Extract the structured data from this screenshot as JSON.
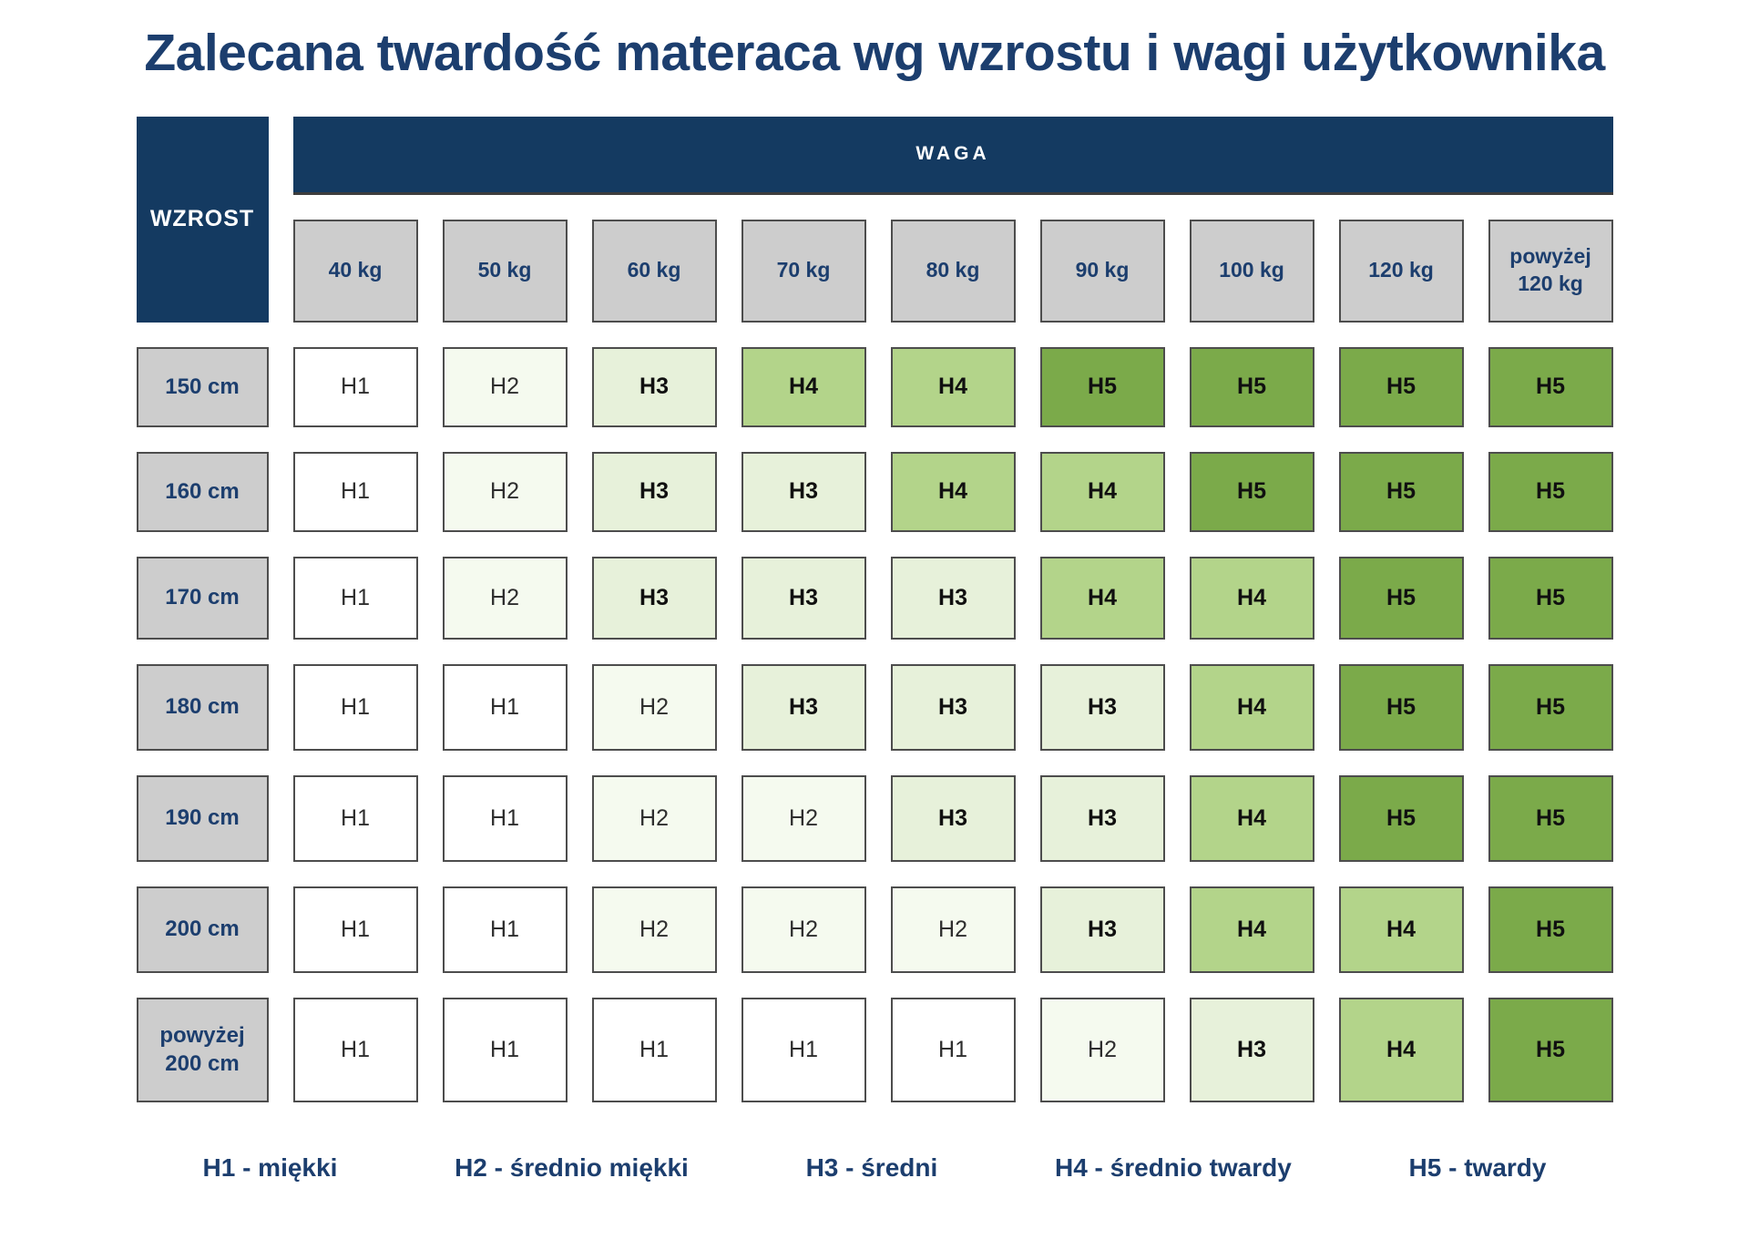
{
  "chart_data": {
    "type": "heatmap",
    "title": "Zalecana twardość materaca wg wzrostu i wagi użytkownika",
    "x_label": "WAGA",
    "y_label": "WZROST",
    "x_categories": [
      "40 kg",
      "50 kg",
      "60 kg",
      "70 kg",
      "80 kg",
      "90 kg",
      "100 kg",
      "120 kg",
      "powyżej 120 kg"
    ],
    "y_categories": [
      "150 cm",
      "160 cm",
      "170 cm",
      "180 cm",
      "190 cm",
      "200 cm",
      "powyżej 200 cm"
    ],
    "values": [
      [
        "H1",
        "H2",
        "H3",
        "H4",
        "H4",
        "H5",
        "H5",
        "H5",
        "H5"
      ],
      [
        "H1",
        "H2",
        "H3",
        "H3",
        "H4",
        "H4",
        "H5",
        "H5",
        "H5"
      ],
      [
        "H1",
        "H2",
        "H3",
        "H3",
        "H3",
        "H4",
        "H4",
        "H5",
        "H5"
      ],
      [
        "H1",
        "H1",
        "H2",
        "H3",
        "H3",
        "H3",
        "H4",
        "H5",
        "H5"
      ],
      [
        "H1",
        "H1",
        "H2",
        "H2",
        "H3",
        "H3",
        "H4",
        "H5",
        "H5"
      ],
      [
        "H1",
        "H1",
        "H2",
        "H2",
        "H2",
        "H3",
        "H4",
        "H4",
        "H5"
      ],
      [
        "H1",
        "H1",
        "H1",
        "H1",
        "H1",
        "H2",
        "H3",
        "H4",
        "H5"
      ]
    ],
    "legend": [
      "H1 - miękki",
      "H2 - średnio miękki",
      "H3 - średni",
      "H4 - średnio twardy",
      "H5 - twardy"
    ]
  },
  "colors": {
    "H1": "#ffffff",
    "H2": "#f5faef",
    "H3": "#e7f1da",
    "H4": "#b3d48a",
    "H5": "#7baa4a",
    "navy": "#143a61",
    "title_navy": "#1c3e6e",
    "header_gray": "#cdcdcd"
  }
}
